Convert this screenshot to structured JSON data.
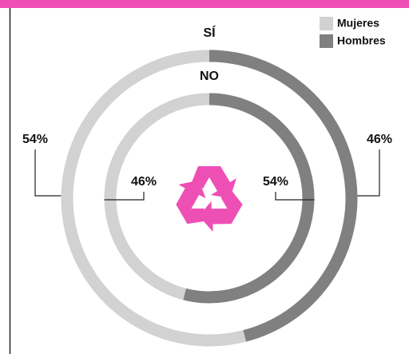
{
  "chart_data": {
    "type": "donut",
    "categories": [
      "Mujeres",
      "Hombres"
    ],
    "colors": [
      "#d2d2d2",
      "#808080"
    ],
    "rings": [
      {
        "name": "SÍ",
        "values": [
          54,
          46
        ],
        "value_labels": [
          "54%",
          "46%"
        ]
      },
      {
        "name": "NO",
        "values": [
          46,
          54
        ],
        "value_labels": [
          "46%",
          "54%"
        ]
      }
    ]
  }
}
